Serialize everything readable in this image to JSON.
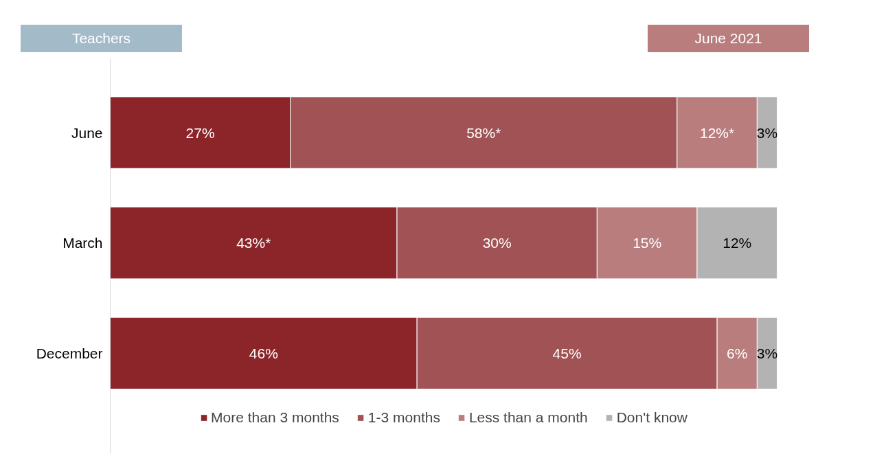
{
  "chart_data": {
    "type": "bar",
    "orientation": "horizontal",
    "stacked": true,
    "title": "Teachers",
    "subtitle": "June 2021",
    "categories": [
      "June",
      "March",
      "December"
    ],
    "series": [
      {
        "name": "More than 3 months",
        "color": "#8b2529",
        "values": [
          27,
          43,
          46
        ],
        "value_labels": [
          "27%",
          "43%*",
          "46%"
        ]
      },
      {
        "name": "1-3 months",
        "color": "#a05254",
        "values": [
          58,
          30,
          45
        ],
        "value_labels": [
          "58%*",
          "30%",
          "45%"
        ]
      },
      {
        "name": "Less than a month",
        "color": "#b97d7e",
        "values": [
          12,
          15,
          6
        ],
        "value_labels": [
          "12%*",
          "15%",
          "6%"
        ]
      },
      {
        "name": "Don't know",
        "color": "#b3b3b3",
        "values": [
          3,
          12,
          3
        ],
        "value_labels": [
          "3%",
          "12%",
          "3%"
        ]
      }
    ],
    "xlim": [
      0,
      100
    ],
    "tick_labels": "y",
    "grid": false,
    "legend": "bottom"
  }
}
